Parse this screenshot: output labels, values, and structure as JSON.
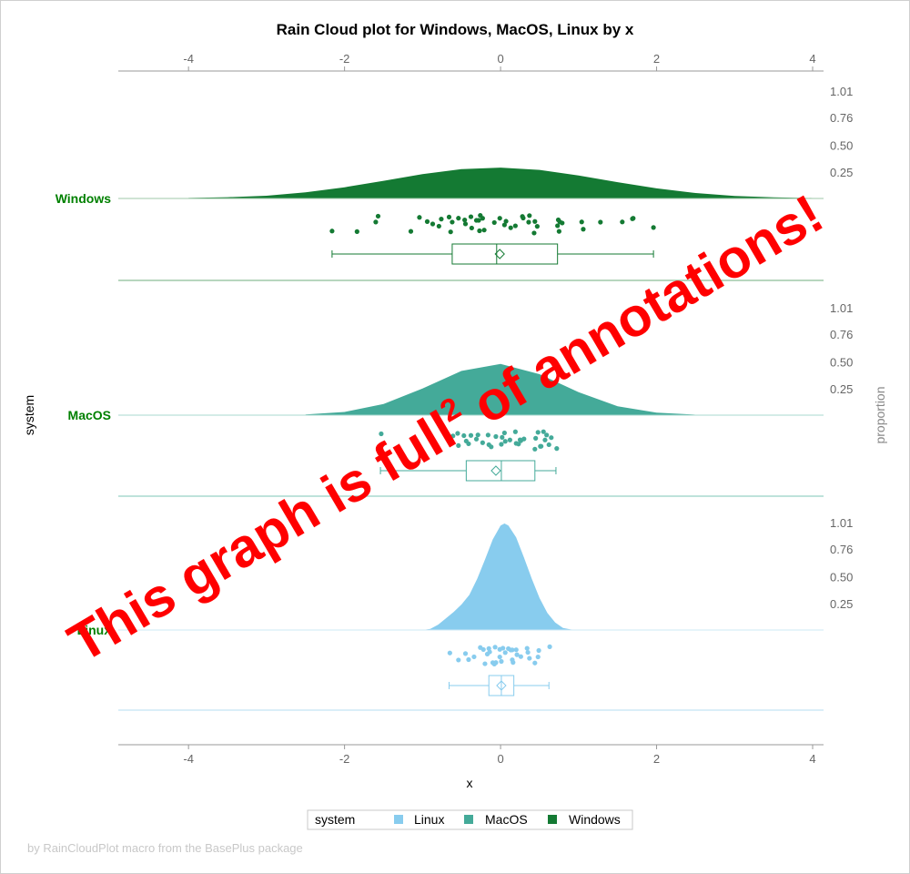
{
  "chart_data": {
    "type": "raincloud",
    "title": "Rain Cloud plot for Windows, MacOS, Linux by x",
    "xlabel": "x",
    "ylabel": "system",
    "y2label": "proportion",
    "xlim": [
      -4.9,
      4.14
    ],
    "xticks": [
      -4,
      -2,
      0,
      2,
      4
    ],
    "proportion_ticks": [
      "1.01",
      "0.76",
      "0.50",
      "0.25"
    ],
    "proportion_tick_values": [
      1.01,
      0.76,
      0.5,
      0.25
    ],
    "legend": {
      "title": "system",
      "placement": "bottom",
      "entries": [
        "Linux",
        "MacOS",
        "Windows"
      ]
    },
    "groups": [
      {
        "name": "Windows",
        "color": "#147a33",
        "density": {
          "x": [
            -4,
            -3.5,
            -3,
            -2.5,
            -2,
            -1.5,
            -1,
            -0.5,
            0,
            0.5,
            1,
            1.5,
            2,
            2.5,
            3,
            3.5,
            4
          ],
          "y": [
            0.005,
            0.012,
            0.026,
            0.058,
            0.105,
            0.166,
            0.228,
            0.275,
            0.29,
            0.268,
            0.216,
            0.153,
            0.095,
            0.051,
            0.024,
            0.01,
            0.004
          ]
        },
        "points": [
          -2.16,
          -1.84,
          -1.57,
          -1.6,
          -1.15,
          -1.04,
          -0.94,
          -0.87,
          -0.79,
          -0.76,
          -0.66,
          -0.64,
          -0.62,
          -0.54,
          -0.45,
          -0.46,
          -0.38,
          -0.37,
          -0.31,
          -0.28,
          -0.26,
          -0.27,
          -0.23,
          -0.21,
          -0.08,
          -0.01,
          0.05,
          0.07,
          0.13,
          0.19,
          0.28,
          0.29,
          0.36,
          0.37,
          0.43,
          0.44,
          0.47,
          0.73,
          0.75,
          0.74,
          0.76,
          0.79,
          1.04,
          1.06,
          1.28,
          1.56,
          1.69,
          1.7,
          1.96
        ],
        "box": {
          "min": -2.16,
          "q1": -0.62,
          "median": -0.05,
          "q3": 0.73,
          "max": 1.96,
          "mean": -0.01
        }
      },
      {
        "name": "MacOS",
        "color": "#44aa99",
        "density": {
          "x": [
            -2.5,
            -2,
            -1.5,
            -1,
            -0.5,
            0,
            0.5,
            1,
            1.5,
            2,
            2.5
          ],
          "y": [
            0.006,
            0.03,
            0.105,
            0.25,
            0.415,
            0.48,
            0.385,
            0.215,
            0.083,
            0.023,
            0.004
          ]
        },
        "points": [
          -1.53,
          -1.04,
          -0.85,
          -0.72,
          -0.61,
          -0.55,
          -0.54,
          -0.47,
          -0.44,
          -0.41,
          -0.38,
          -0.31,
          -0.29,
          -0.23,
          -0.16,
          -0.15,
          -0.12,
          -0.06,
          0.01,
          0.02,
          0.05,
          0.06,
          0.12,
          0.19,
          0.2,
          0.23,
          0.26,
          0.25,
          0.3,
          0.44,
          0.45,
          0.48,
          0.51,
          0.52,
          0.55,
          0.57,
          0.59,
          0.62,
          0.65,
          0.72
        ],
        "box": {
          "min": -1.54,
          "q1": -0.44,
          "median": 0.01,
          "q3": 0.44,
          "max": 0.71,
          "mean": -0.06
        }
      },
      {
        "name": "Linux",
        "color": "#88ccee",
        "density": {
          "x": [
            -1,
            -0.9,
            -0.8,
            -0.7,
            -0.6,
            -0.5,
            -0.4,
            -0.3,
            -0.2,
            -0.1,
            0,
            0.05,
            0.1,
            0.2,
            0.3,
            0.4,
            0.5,
            0.6,
            0.7,
            0.8,
            0.9,
            1
          ],
          "y": [
            0,
            0.01,
            0.05,
            0.11,
            0.17,
            0.24,
            0.33,
            0.48,
            0.66,
            0.85,
            0.98,
            1.0,
            0.98,
            0.87,
            0.68,
            0.48,
            0.3,
            0.16,
            0.07,
            0.02,
            0.005,
            0
          ]
        },
        "points": [
          -0.65,
          -0.54,
          -0.45,
          -0.41,
          -0.34,
          -0.26,
          -0.22,
          -0.2,
          -0.17,
          -0.15,
          -0.14,
          -0.1,
          -0.08,
          -0.07,
          -0.06,
          -0.01,
          -0.01,
          0.01,
          0.03,
          0.06,
          0.1,
          0.13,
          0.15,
          0.15,
          0.16,
          0.2,
          0.21,
          0.26,
          0.34,
          0.35,
          0.37,
          0.44,
          0.49,
          0.48,
          0.63
        ],
        "box": {
          "min": -0.66,
          "q1": -0.15,
          "median": 0.01,
          "q3": 0.17,
          "max": 0.62,
          "mean": 0.01
        }
      }
    ]
  },
  "annotation": {
    "text_before": "This graph is full",
    "superscript": "2",
    "text_after": " of annotations!",
    "color": "#ff0000"
  },
  "footer": "by RainCloudPlot macro from the BasePlus package"
}
